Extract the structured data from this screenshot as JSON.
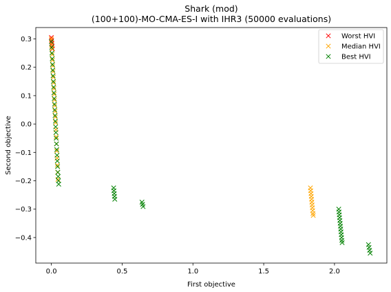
{
  "chart_data": {
    "type": "scatter",
    "title": "Shark (mod)",
    "subtitle": "(100+100)-MO-CMA-ES-I with IHR3 (50000 evaluations)",
    "xlabel": "First objective",
    "ylabel": "Second objective",
    "xlim": [
      -0.11,
      2.37
    ],
    "ylim": [
      -0.49,
      0.34
    ],
    "xticks": [
      0.0,
      0.5,
      1.0,
      1.5,
      2.0
    ],
    "yticks": [
      0.3,
      0.2,
      0.1,
      0.0,
      -0.1,
      -0.2,
      -0.3,
      -0.4
    ],
    "xtick_labels": [
      "0.0",
      "0.5",
      "1.0",
      "1.5",
      "2.0"
    ],
    "ytick_labels": [
      "0.3",
      "0.2",
      "0.1",
      "0.0",
      "−0.1",
      "−0.2",
      "−0.3",
      "−0.4"
    ],
    "grid": false,
    "legend_position": "top-right",
    "marker": "x",
    "series": [
      {
        "name": "Worst HVI",
        "color": "#ff0000",
        "points": [
          [
            0.0,
            0.305
          ],
          [
            0.002,
            0.295
          ],
          [
            0.004,
            0.285
          ],
          [
            0.006,
            0.275
          ],
          [
            0.008,
            0.265
          ]
        ]
      },
      {
        "name": "Median HVI",
        "color": "#ffa500",
        "points": [
          [
            0.0,
            0.3
          ],
          [
            0.002,
            0.28
          ],
          [
            0.004,
            0.265
          ],
          [
            0.006,
            0.245
          ],
          [
            0.008,
            0.225
          ],
          [
            0.01,
            0.205
          ],
          [
            0.012,
            0.185
          ],
          [
            0.014,
            0.165
          ],
          [
            0.016,
            0.145
          ],
          [
            0.018,
            0.125
          ],
          [
            0.02,
            0.105
          ],
          [
            0.022,
            0.085
          ],
          [
            0.024,
            0.065
          ],
          [
            0.026,
            0.045
          ],
          [
            0.028,
            0.025
          ],
          [
            0.03,
            0.005
          ],
          [
            0.032,
            -0.02
          ],
          [
            0.034,
            -0.045
          ],
          [
            0.036,
            -0.07
          ],
          [
            0.038,
            -0.095
          ],
          [
            0.04,
            -0.12
          ],
          [
            0.042,
            -0.145
          ],
          [
            0.044,
            -0.17
          ],
          [
            0.046,
            -0.195
          ],
          [
            1.83,
            -0.225
          ],
          [
            1.832,
            -0.235
          ],
          [
            1.834,
            -0.245
          ],
          [
            1.836,
            -0.255
          ],
          [
            1.838,
            -0.265
          ],
          [
            1.84,
            -0.275
          ],
          [
            1.842,
            -0.285
          ],
          [
            1.844,
            -0.295
          ],
          [
            1.846,
            -0.305
          ],
          [
            1.848,
            -0.315
          ],
          [
            1.85,
            -0.322
          ]
        ]
      },
      {
        "name": "Best HVI",
        "color": "#008000",
        "points": [
          [
            0.0,
            0.29
          ],
          [
            0.002,
            0.27
          ],
          [
            0.004,
            0.25
          ],
          [
            0.006,
            0.23
          ],
          [
            0.008,
            0.21
          ],
          [
            0.01,
            0.19
          ],
          [
            0.012,
            0.17
          ],
          [
            0.014,
            0.15
          ],
          [
            0.016,
            0.13
          ],
          [
            0.018,
            0.11
          ],
          [
            0.02,
            0.09
          ],
          [
            0.022,
            0.07
          ],
          [
            0.024,
            0.05
          ],
          [
            0.026,
            0.03
          ],
          [
            0.028,
            0.01
          ],
          [
            0.03,
            -0.01
          ],
          [
            0.032,
            -0.03
          ],
          [
            0.034,
            -0.05
          ],
          [
            0.036,
            -0.07
          ],
          [
            0.038,
            -0.09
          ],
          [
            0.04,
            -0.11
          ],
          [
            0.042,
            -0.13
          ],
          [
            0.044,
            -0.15
          ],
          [
            0.046,
            -0.17
          ],
          [
            0.048,
            -0.185
          ],
          [
            0.05,
            -0.2
          ],
          [
            0.052,
            -0.212
          ],
          [
            0.44,
            -0.225
          ],
          [
            0.442,
            -0.235
          ],
          [
            0.444,
            -0.245
          ],
          [
            0.446,
            -0.255
          ],
          [
            0.448,
            -0.265
          ],
          [
            0.64,
            -0.275
          ],
          [
            0.644,
            -0.283
          ],
          [
            0.648,
            -0.291
          ],
          [
            2.03,
            -0.3
          ],
          [
            2.032,
            -0.31
          ],
          [
            2.034,
            -0.32
          ],
          [
            2.036,
            -0.33
          ],
          [
            2.038,
            -0.34
          ],
          [
            2.04,
            -0.35
          ],
          [
            2.042,
            -0.36
          ],
          [
            2.044,
            -0.37
          ],
          [
            2.046,
            -0.38
          ],
          [
            2.048,
            -0.39
          ],
          [
            2.05,
            -0.4
          ],
          [
            2.052,
            -0.41
          ],
          [
            2.054,
            -0.418
          ],
          [
            2.24,
            -0.425
          ],
          [
            2.244,
            -0.435
          ],
          [
            2.248,
            -0.445
          ],
          [
            2.252,
            -0.455
          ]
        ]
      }
    ]
  }
}
